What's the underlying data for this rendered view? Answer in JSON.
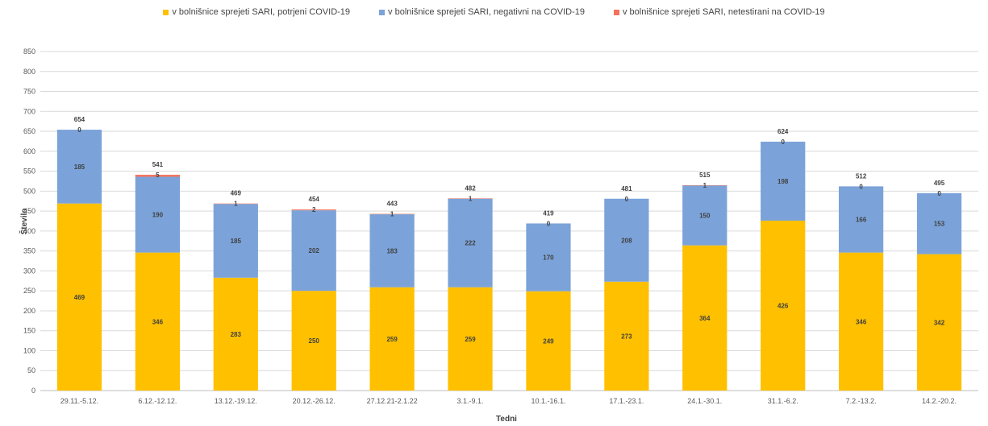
{
  "chart_data": {
    "type": "bar",
    "stacked": true,
    "title": "",
    "xlabel": "Tedni",
    "ylabel": "Število",
    "ylim": [
      0,
      850
    ],
    "ytick_step": 50,
    "grid": true,
    "legend_position": "top",
    "categories": [
      "29.11.-5.12.",
      "6.12.-12.12.",
      "13.12.-19.12.",
      "20.12.-26.12.",
      "27.12.21-2.1.22",
      "3.1.-9.1.",
      "10.1.-16.1.",
      "17.1.-23.1.",
      "24.1.-30.1.",
      "31.1.-6.2.",
      "7.2.-13.2.",
      "14.2.-20.2."
    ],
    "series": [
      {
        "name": "v bolnišnice sprejeti SARI, potrjeni COVID-19",
        "color": "#FFC000",
        "values": [
          469,
          346,
          283,
          250,
          259,
          259,
          249,
          273,
          364,
          426,
          346,
          342
        ]
      },
      {
        "name": "v bolnišnice sprejeti SARI, negativni na COVID-19",
        "color": "#7BA3D9",
        "values": [
          185,
          190,
          185,
          202,
          183,
          222,
          170,
          208,
          150,
          198,
          166,
          153
        ]
      },
      {
        "name": "v bolnišnice sprejeti SARI, netestirani na COVID-19",
        "color": "#F4725B",
        "values": [
          0,
          5,
          1,
          2,
          1,
          1,
          0,
          0,
          1,
          0,
          0,
          0
        ]
      }
    ],
    "totals": [
      654,
      541,
      469,
      454,
      443,
      482,
      419,
      481,
      515,
      624,
      512,
      495
    ]
  }
}
